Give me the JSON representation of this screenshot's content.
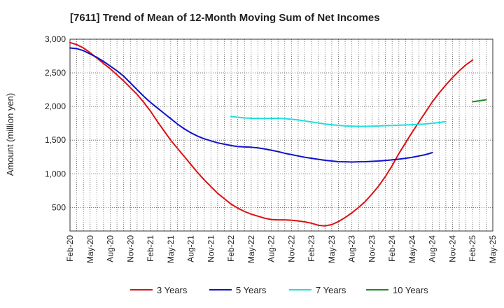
{
  "chart_data": {
    "type": "line",
    "title": "[7611]  Trend of Mean of 12-Month Moving Sum of Net Incomes",
    "ylabel": "Amount (million yen)",
    "xlabel": "",
    "ylim": [
      150,
      3000
    ],
    "yticks": [
      500,
      1000,
      1500,
      2000,
      2500,
      3000
    ],
    "ytick_labels": [
      "500",
      "1,000",
      "1,500",
      "2,000",
      "2,500",
      "3,000"
    ],
    "xticks": [
      "Feb-20",
      "May-20",
      "Aug-20",
      "Nov-20",
      "Feb-21",
      "May-21",
      "Aug-21",
      "Nov-21",
      "Feb-22",
      "May-22",
      "Aug-22",
      "Nov-22",
      "Feb-23",
      "May-23",
      "Aug-23",
      "Nov-23",
      "Feb-24",
      "May-24",
      "Aug-24",
      "Nov-24",
      "Feb-25",
      "May-25"
    ],
    "grid": true,
    "legend_position": "bottom",
    "series": [
      {
        "name": "3 Years",
        "color": "#dd1111",
        "start_index": 0,
        "values": [
          2950,
          2920,
          2870,
          2800,
          2720,
          2640,
          2560,
          2470,
          2380,
          2280,
          2180,
          2060,
          1930,
          1780,
          1640,
          1500,
          1380,
          1260,
          1140,
          1020,
          910,
          810,
          710,
          630,
          550,
          490,
          440,
          400,
          370,
          340,
          320,
          315,
          315,
          310,
          300,
          285,
          265,
          235,
          225,
          245,
          290,
          350,
          420,
          500,
          590,
          700,
          820,
          960,
          1120,
          1300,
          1460,
          1620,
          1770,
          1920,
          2070,
          2200,
          2320,
          2430,
          2530,
          2620,
          2690
        ]
      },
      {
        "name": "5 Years",
        "color": "#1111cc",
        "start_index": 0,
        "values": [
          2870,
          2860,
          2830,
          2780,
          2730,
          2670,
          2600,
          2530,
          2450,
          2350,
          2250,
          2150,
          2060,
          1980,
          1900,
          1820,
          1740,
          1670,
          1610,
          1560,
          1520,
          1490,
          1460,
          1440,
          1420,
          1405,
          1400,
          1395,
          1385,
          1370,
          1350,
          1330,
          1305,
          1285,
          1265,
          1245,
          1230,
          1215,
          1200,
          1190,
          1180,
          1178,
          1175,
          1178,
          1180,
          1185,
          1190,
          1198,
          1207,
          1218,
          1230,
          1245,
          1265,
          1285,
          1315
        ]
      },
      {
        "name": "7 Years",
        "color": "#22dddd",
        "start_index": 24,
        "values": [
          1850,
          1840,
          1830,
          1825,
          1822,
          1822,
          1825,
          1825,
          1820,
          1810,
          1800,
          1785,
          1770,
          1755,
          1740,
          1730,
          1720,
          1712,
          1708,
          1705,
          1705,
          1708,
          1712,
          1715,
          1718,
          1722,
          1726,
          1730,
          1735,
          1742,
          1750,
          1762,
          1775
        ]
      },
      {
        "name": "10 Years",
        "color": "#228822",
        "start_index": 60,
        "values": [
          2070,
          2085,
          2100
        ]
      }
    ]
  }
}
